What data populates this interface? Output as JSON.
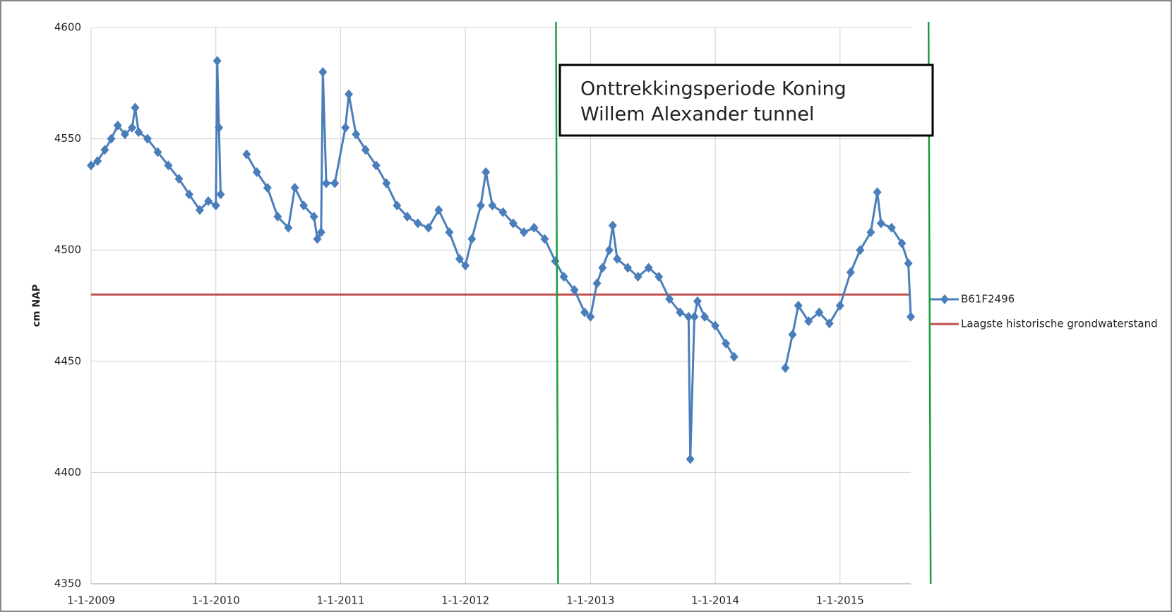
{
  "chart_data": {
    "type": "line",
    "ylabel": "cm NAP",
    "xlim": [
      "2009-01-01",
      "2015-07-27"
    ],
    "ylim": [
      4350,
      4600
    ],
    "yticks": [
      4350,
      4400,
      4450,
      4500,
      4550,
      4600
    ],
    "xticks": [
      {
        "value": "2009-01-01",
        "label": "1-1-2009"
      },
      {
        "value": "2010-01-01",
        "label": "1-1-2010"
      },
      {
        "value": "2011-01-01",
        "label": "1-1-2011"
      },
      {
        "value": "2012-01-01",
        "label": "1-1-2012"
      },
      {
        "value": "2013-01-01",
        "label": "1-1-2013"
      },
      {
        "value": "2014-01-01",
        "label": "1-1-2014"
      },
      {
        "value": "2015-01-01",
        "label": "1-1-2015"
      }
    ],
    "grid": true,
    "x": [
      "2009-01-01",
      "2009-01-20",
      "2009-02-10",
      "2009-03-01",
      "2009-03-20",
      "2009-04-10",
      "2009-05-01",
      "2009-05-10",
      "2009-05-20",
      "2009-06-15",
      "2009-07-15",
      "2009-08-15",
      "2009-09-15",
      "2009-10-15",
      "2009-11-15",
      "2009-12-10",
      "2010-01-01",
      "2010-01-05",
      "2010-01-10",
      "2010-01-15",
      "2010-02-15",
      "2010-04-01",
      "2010-05-01",
      "2010-06-01",
      "2010-07-01",
      "2010-08-01",
      "2010-08-20",
      "2010-09-15",
      "2010-10-15",
      "2010-10-25",
      "2010-11-05",
      "2010-11-10",
      "2010-11-20",
      "2010-12-15",
      "2011-01-15",
      "2011-01-25",
      "2011-02-15",
      "2011-03-15",
      "2011-04-15",
      "2011-05-15",
      "2011-06-15",
      "2011-07-15",
      "2011-08-15",
      "2011-09-15",
      "2011-10-15",
      "2011-11-15",
      "2011-12-15",
      "2012-01-01",
      "2012-01-20",
      "2012-02-15",
      "2012-03-01",
      "2012-03-20",
      "2012-04-20",
      "2012-05-20",
      "2012-06-20",
      "2012-07-20",
      "2012-08-20",
      "2012-09-20",
      "2012-10-15",
      "2012-11-15",
      "2012-12-15",
      "2013-01-01",
      "2013-01-20",
      "2013-02-05",
      "2013-02-25",
      "2013-03-07",
      "2013-03-20",
      "2013-04-20",
      "2013-05-20",
      "2013-06-20",
      "2013-07-20",
      "2013-08-20",
      "2013-09-20",
      "2013-10-15",
      "2013-10-20",
      "2013-11-01",
      "2013-11-10",
      "2013-12-01",
      "2014-01-01",
      "2014-02-01",
      "2014-02-25",
      "2014-05-01",
      "2014-07-25",
      "2014-08-15",
      "2014-09-01",
      "2014-10-01",
      "2014-11-01",
      "2014-12-01",
      "2015-01-01",
      "2015-02-01",
      "2015-03-01",
      "2015-04-01",
      "2015-04-20",
      "2015-05-01",
      "2015-06-01",
      "2015-07-01",
      "2015-07-20",
      "2015-07-27"
    ],
    "series": [
      {
        "name": "B61F2496",
        "color": "#4a7ebb",
        "values": [
          4538,
          4540,
          4545,
          4550,
          4556,
          4552,
          4555,
          4564,
          4553,
          4550,
          4544,
          4538,
          4532,
          4525,
          4518,
          4522,
          4520,
          4585,
          4555,
          4525,
          null,
          4543,
          4535,
          4528,
          4515,
          4510,
          4528,
          4520,
          4515,
          4505,
          4508,
          4580,
          4530,
          4530,
          4555,
          4570,
          4552,
          4545,
          4538,
          4530,
          4520,
          4515,
          4512,
          4510,
          4518,
          4508,
          4496,
          4493,
          4505,
          4520,
          4535,
          4520,
          4517,
          4512,
          4508,
          4510,
          4505,
          4495,
          4488,
          4482,
          4472,
          4470,
          4485,
          4492,
          4500,
          4511,
          4496,
          4492,
          4488,
          4492,
          4488,
          4478,
          4472,
          4470,
          4406,
          4470,
          4477,
          4470,
          4466,
          4458,
          4452,
          null,
          4447,
          4462,
          4475,
          4468,
          4472,
          4467,
          4475,
          4490,
          4500,
          4508,
          4526,
          4512,
          4510,
          4503,
          4494,
          4470
        ]
      }
    ],
    "reference_lines": [
      {
        "name": "Laagste historische grondwaterstand",
        "color": "#c0504d",
        "value": 4480
      }
    ],
    "vlines": [
      {
        "x": "2012-09-22",
        "color": "#1a9e3a"
      },
      {
        "x": "2015-09-17",
        "color": "#1a9e3a"
      }
    ],
    "annotation": {
      "lines": [
        "Onttrekkingsperiode Koning",
        "Willem Alexander tunnel"
      ]
    }
  }
}
